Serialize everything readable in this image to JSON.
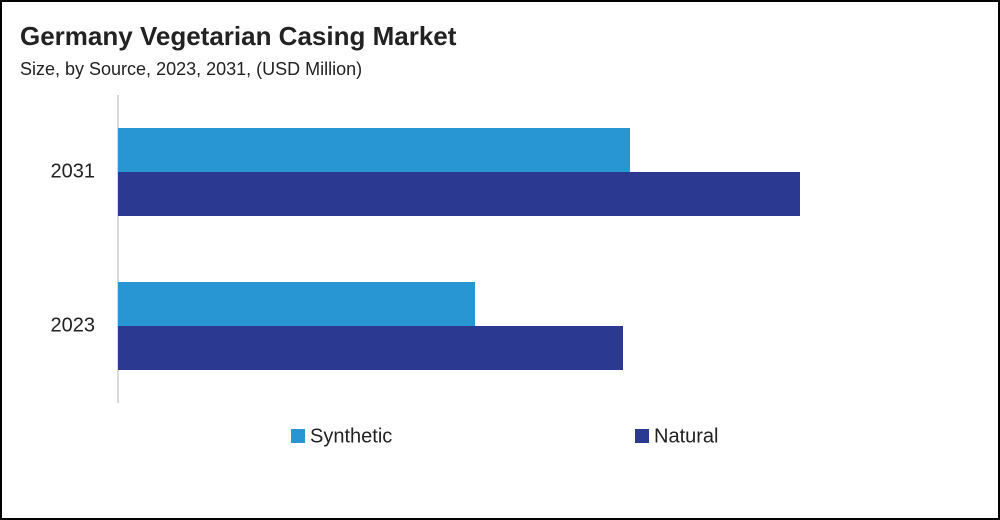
{
  "chart_data": {
    "type": "bar",
    "orientation": "horizontal",
    "title": "Germany Vegetarian Casing Market",
    "subtitle": "Size, by Source, 2023, 2031, (USD Million)",
    "categories": [
      "2031",
      "2023"
    ],
    "series": [
      {
        "name": "Synthetic",
        "color": "#2896d3",
        "values": [
          51.2,
          35.7
        ]
      },
      {
        "name": "Natural",
        "color": "#2b3990",
        "values": [
          68.2,
          50.5
        ]
      }
    ],
    "legend": "bottom"
  }
}
